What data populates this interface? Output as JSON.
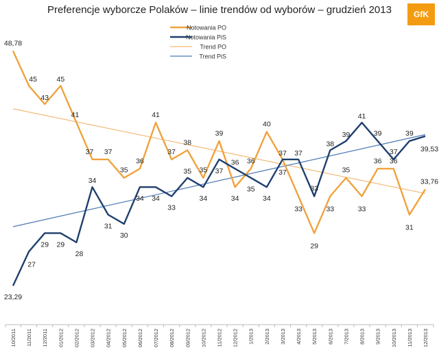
{
  "chart_data": {
    "type": "line",
    "title": "Preferencje wyborcze Polaków – linie trendów od wyborów – grudzień 2013",
    "categories": [
      "10/2011",
      "11/2011",
      "12/2011",
      "01/2012",
      "02/2012",
      "03/2012",
      "04/2012",
      "05/2012",
      "06/2012",
      "07/2012",
      "08/2012",
      "09/2012",
      "10/2012",
      "11/2012",
      "12/2012",
      "1/2013",
      "2/2013",
      "3/2013",
      "4/2013",
      "5/2013",
      "6/2013",
      "7/2013",
      "8/2013",
      "9/2013",
      "10/2013",
      "11/2013",
      "12/2013"
    ],
    "series": [
      {
        "name": "Notowania PO",
        "color": "#f0a23c",
        "values": [
          48.78,
          45,
          43,
          45,
          41,
          37,
          37,
          35,
          36,
          41,
          37,
          38,
          35,
          39,
          34,
          36,
          40,
          37,
          33,
          29,
          33,
          35,
          33,
          36,
          36,
          31,
          33.76
        ],
        "labels": [
          "48,78",
          "45",
          "43",
          "45",
          "41",
          "37",
          "37",
          "35",
          "36",
          "41",
          "37",
          "38",
          "35",
          "39",
          "34",
          "36",
          "40",
          "37",
          "33",
          "29",
          "33",
          "35",
          "33",
          "36",
          "36",
          "31",
          "33,76"
        ]
      },
      {
        "name": "Notowania PiS",
        "color": "#1f3f6e",
        "values": [
          23.29,
          27,
          29,
          29,
          28,
          34,
          31,
          30,
          34,
          34,
          33,
          35,
          34,
          37,
          36,
          35,
          34,
          37,
          37,
          33,
          38,
          39,
          41,
          39,
          37,
          39,
          39.53
        ],
        "labels": [
          "23,29",
          "27",
          "29",
          "29",
          "28",
          "34",
          "31",
          "30",
          "34",
          "34",
          "33",
          "35",
          "34",
          "37",
          "36",
          "35",
          "34",
          "37",
          "37",
          "33",
          "38",
          "39",
          "41",
          "39",
          "37",
          "39",
          "39,53"
        ]
      }
    ],
    "trends": [
      {
        "name": "Trend PO",
        "color": "#f4b877",
        "start": 42.5,
        "end": 33.3
      },
      {
        "name": "Trend PiS",
        "color": "#4a78b3",
        "start": 29.7,
        "end": 39.7
      }
    ],
    "ylim": [
      21,
      50
    ],
    "xlabel": "",
    "ylabel": "",
    "grid": false,
    "legend_position": "top-center"
  },
  "logo_text": "GfK"
}
